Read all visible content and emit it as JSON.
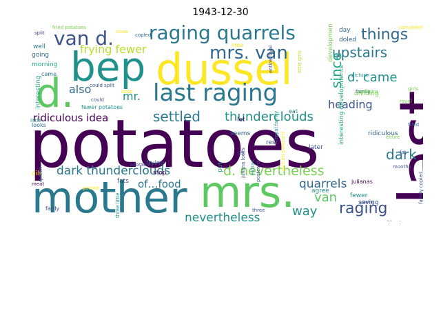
{
  "title": "1943-12-30",
  "words": [
    {
      "text": "potatoes",
      "color": "#440154"
    },
    {
      "text": "last",
      "color": "#440154"
    },
    {
      "text": "mother",
      "color": "#2a788e"
    },
    {
      "text": "mrs.",
      "color": "#5ec962"
    },
    {
      "text": "dussel",
      "color": "#fde725"
    },
    {
      "text": "bep",
      "color": "#21918c"
    },
    {
      "text": "d.",
      "color": "#5ec962"
    },
    {
      "text": "last raging",
      "color": "#2a788e"
    },
    {
      "text": "raging quarrels",
      "color": "#2a788e"
    },
    {
      "text": "van d.",
      "color": "#3b528b"
    },
    {
      "text": "mrs. van",
      "color": "#31688e"
    },
    {
      "text": "things",
      "color": "#31688e"
    },
    {
      "text": "upstairs",
      "color": "#2a788e"
    },
    {
      "text": "frying fewer",
      "color": "#b5de2b"
    },
    {
      "text": "d. came",
      "color": "#21918c"
    },
    {
      "text": "since",
      "color": "#22a884"
    },
    {
      "text": "also",
      "color": "#31688e"
    },
    {
      "text": "mr.",
      "color": "#21918c"
    },
    {
      "text": "heading",
      "color": "#3b528b"
    },
    {
      "text": "settled",
      "color": "#2a788e"
    },
    {
      "text": "thunderclouds",
      "color": "#21918c"
    },
    {
      "text": "ridiculous idea",
      "color": "#440154"
    },
    {
      "text": "dark",
      "color": "#2a788e"
    },
    {
      "text": "dark thunderclouds",
      "color": "#2a788e"
    },
    {
      "text": "d. nevertheless",
      "color": "#7ad151"
    },
    {
      "text": "van",
      "color": "#5ec962"
    },
    {
      "text": "quarrels",
      "color": "#31688e"
    },
    {
      "text": "raging",
      "color": "#3b528b"
    },
    {
      "text": "of…food",
      "color": "#2a788e"
    },
    {
      "text": "way",
      "color": "#21918c"
    },
    {
      "text": "nevertheless",
      "color": "#21918c"
    },
    {
      "text": "fried potatoes",
      "color": "#7ad151"
    },
    {
      "text": "split",
      "color": "#414487"
    },
    {
      "text": "snow",
      "color": "#fde725"
    },
    {
      "text": "copied",
      "color": "#31688e"
    },
    {
      "text": "completely",
      "color": "#fde725"
    },
    {
      "text": "well",
      "color": "#2a788e"
    },
    {
      "text": "going",
      "color": "#31688e"
    },
    {
      "text": "morning",
      "color": "#22a884"
    },
    {
      "text": "came",
      "color": "#2a788e"
    },
    {
      "text": "interesting",
      "color": "#22a884"
    },
    {
      "text": "could split",
      "color": "#3b528b"
    },
    {
      "text": "soup",
      "color": "#fde725"
    },
    {
      "text": "fewer potatoes",
      "color": "#21918c"
    },
    {
      "text": "could",
      "color": "#3b528b"
    },
    {
      "text": "adorable",
      "color": "#414487"
    },
    {
      "text": "frying",
      "color": "#31688e"
    },
    {
      "text": "stop",
      "color": "#440154"
    },
    {
      "text": "fats",
      "color": "#3b528b"
    },
    {
      "text": "seems",
      "color": "#31688e"
    },
    {
      "text": "let",
      "color": "#440154"
    },
    {
      "text": "put",
      "color": "#21918c"
    },
    {
      "text": "us",
      "color": "#414487"
    },
    {
      "text": "rest",
      "color": "#3b528b"
    },
    {
      "text": "eat",
      "color": "#2a788e"
    },
    {
      "text": "later",
      "color": "#3b528b"
    },
    {
      "text": "agree",
      "color": "#21918c"
    },
    {
      "text": "saving",
      "color": "#3b528b"
    },
    {
      "text": "fewer",
      "color": "#21918c"
    },
    {
      "text": "young",
      "color": "#3b528b"
    },
    {
      "text": "without",
      "color": "#440154"
    },
    {
      "text": "three",
      "color": "#3b528b"
    },
    {
      "text": "peeled",
      "color": "#fde725"
    },
    {
      "text": "fairly",
      "color": "#3b528b"
    },
    {
      "text": "oils",
      "color": "#fde725"
    },
    {
      "text": "meat",
      "color": "#440154"
    },
    {
      "text": "looks",
      "color": "#31688e"
    },
    {
      "text": "little",
      "color": "#21918c"
    },
    {
      "text": "day",
      "color": "#31688e"
    },
    {
      "text": "doled",
      "color": "#31688e"
    },
    {
      "text": "idea",
      "color": "#fde725"
    },
    {
      "text": "picture",
      "color": "#21918c"
    },
    {
      "text": "dividing",
      "color": "#7ad151"
    },
    {
      "text": "months",
      "color": "#3b528b"
    },
    {
      "text": "fat",
      "color": "#3b528b"
    },
    {
      "text": "julianas",
      "color": "#440154"
    },
    {
      "text": "royal",
      "color": "#7ad151"
    },
    {
      "text": "family",
      "color": "#31688e"
    },
    {
      "text": "fried",
      "color": "#31688e"
    },
    {
      "text": "ridiculous",
      "color": "#31688e"
    },
    {
      "text": "entire",
      "color": "#7ad151"
    },
    {
      "text": "extras",
      "color": "#21918c"
    },
    {
      "text": "postcard",
      "color": "#3b528b"
    },
    {
      "text": "splitting",
      "color": "#7ad151"
    },
    {
      "text": "developments",
      "color": "#7ad151"
    },
    {
      "text": "interesting developments",
      "color": "#22a884"
    },
    {
      "text": "entire royal",
      "color": "#414487"
    },
    {
      "text": "royal family",
      "color": "#21918c"
    },
    {
      "text": "juliana looks",
      "color": "#3b528b"
    },
    {
      "text": "picture postcard",
      "color": "#fde725"
    },
    {
      "text": "little girls",
      "color": "#b5de2b"
    },
    {
      "text": "three little",
      "color": "#21918c"
    },
    {
      "text": "family copied",
      "color": "#3b528b"
    },
    {
      "text": "queen",
      "color": "#3b528b"
    },
    {
      "text": "girls",
      "color": "#7ad151"
    }
  ]
}
